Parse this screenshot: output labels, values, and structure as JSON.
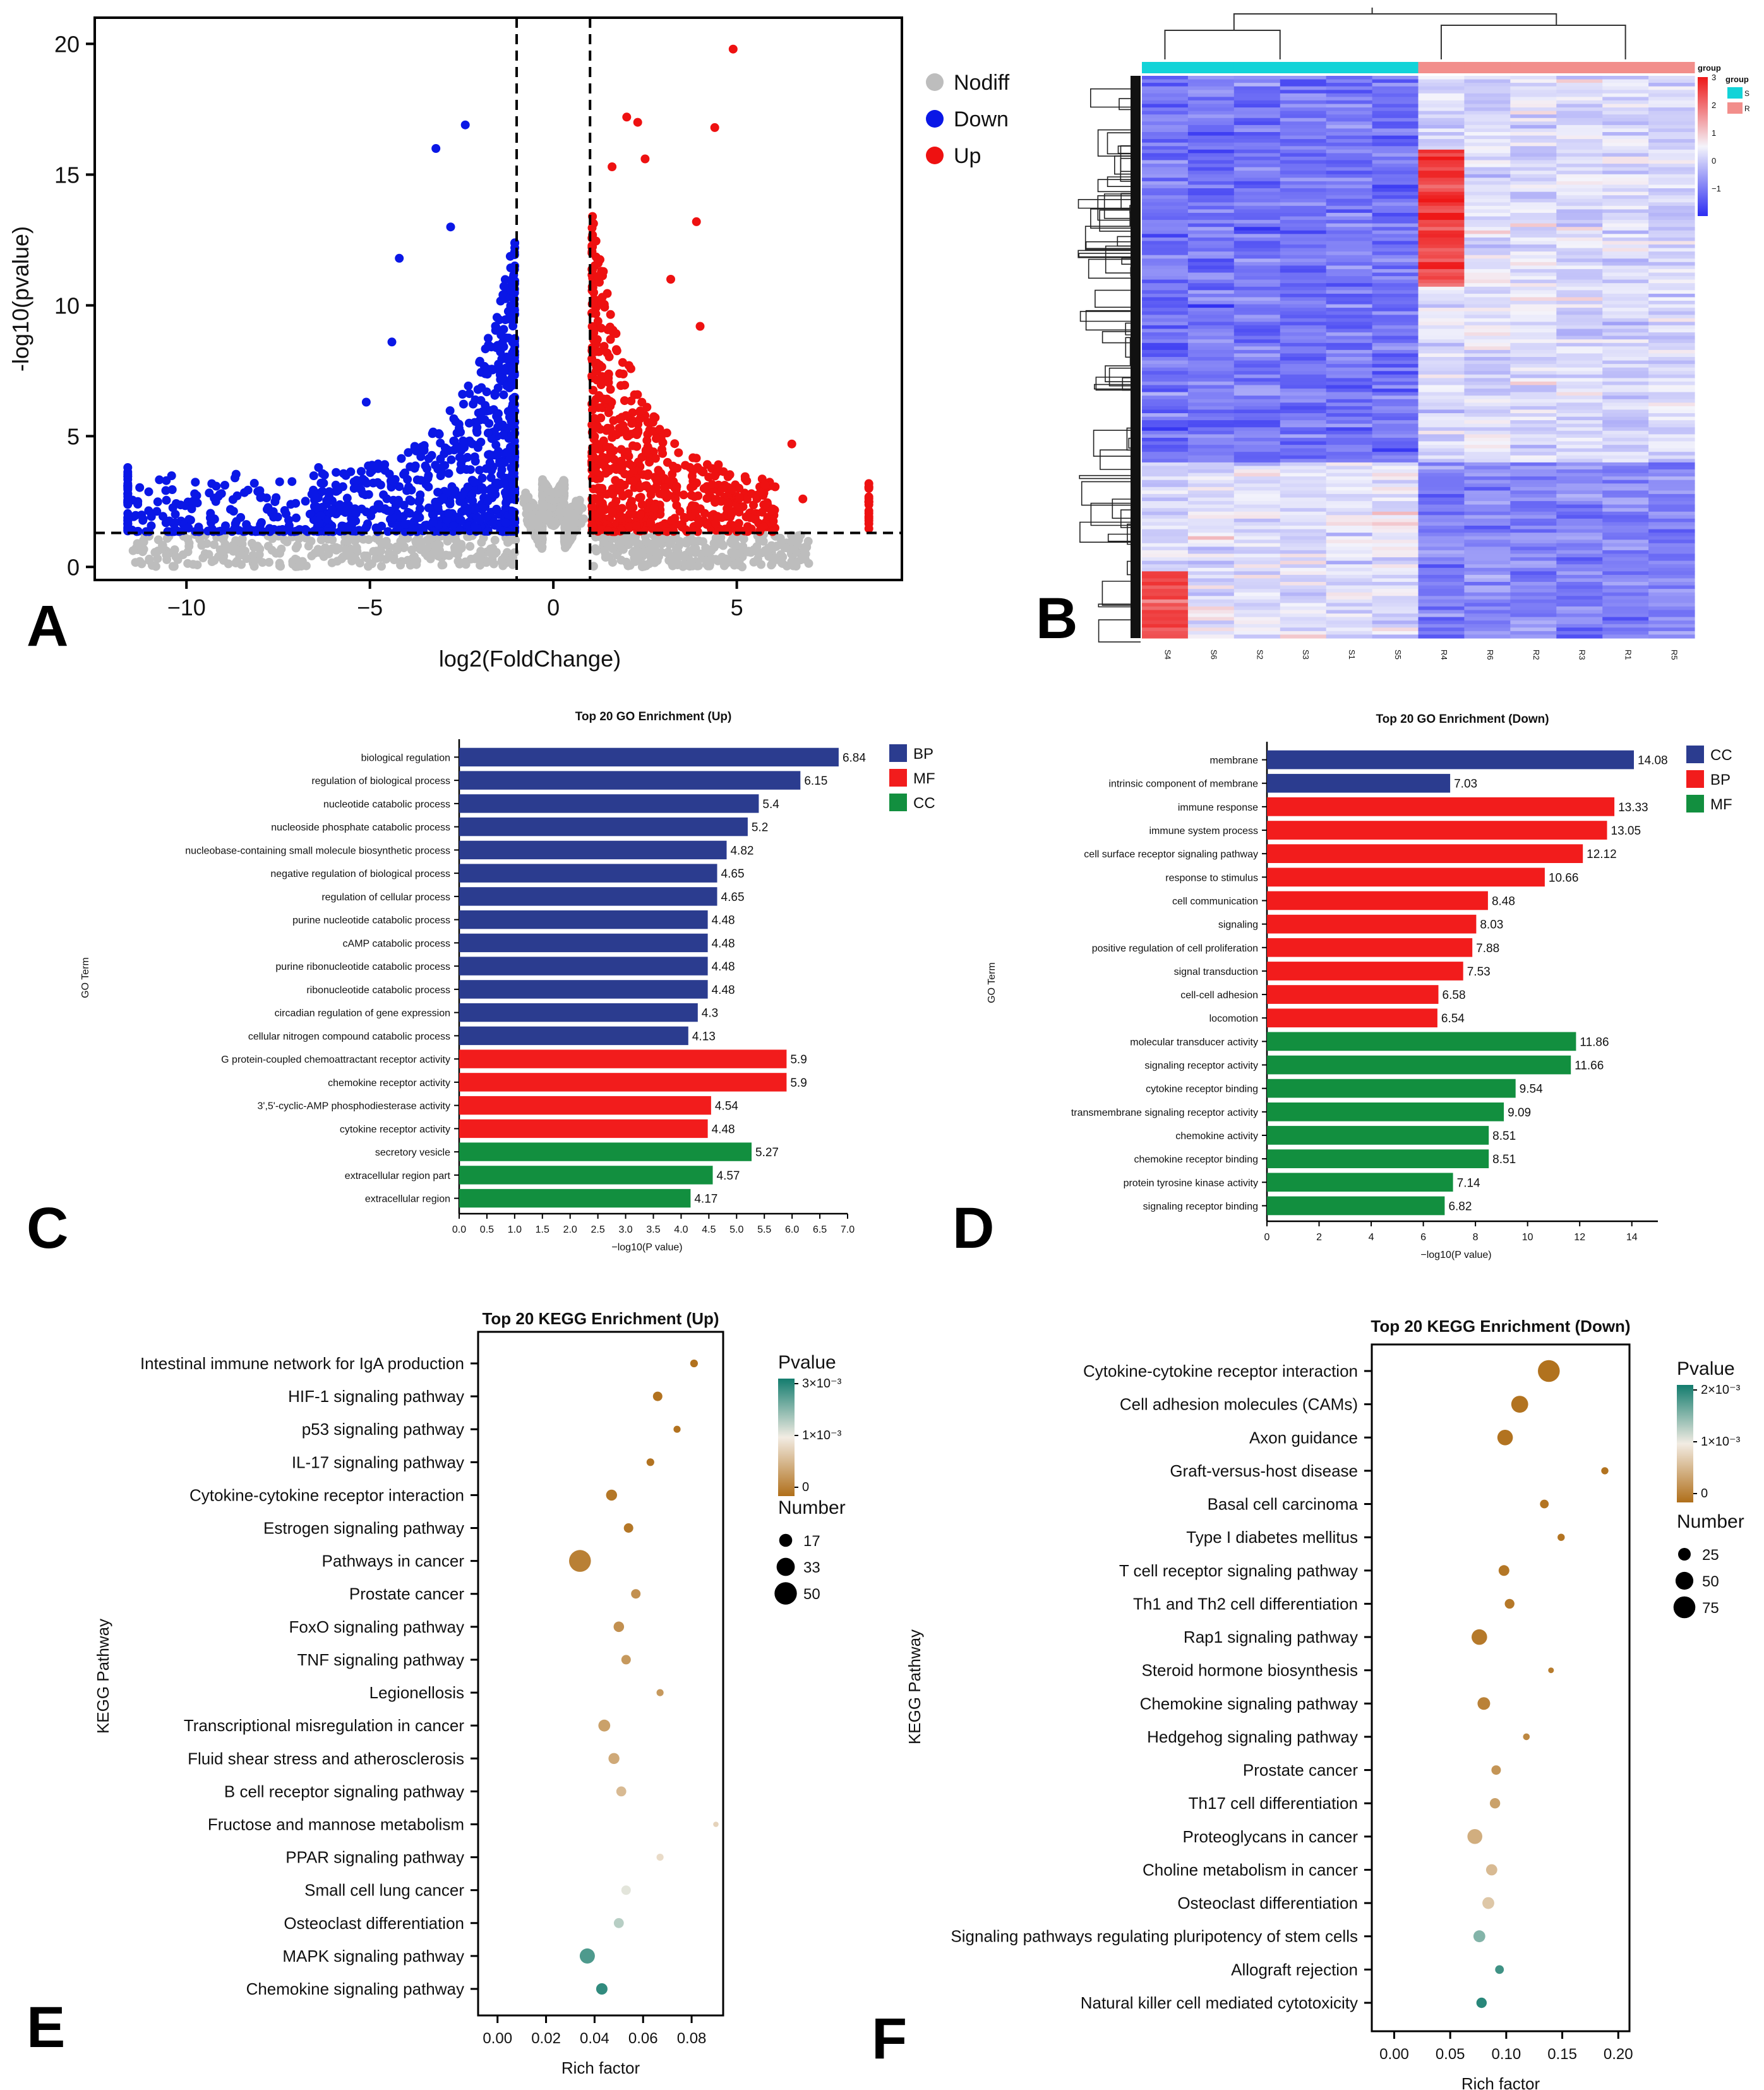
{
  "colors": {
    "nodiff": "#bdbdbd",
    "down": "#0a17e6",
    "up": "#ee1111",
    "bar_blue": "#2b3c8f",
    "bar_red": "#f21c1c",
    "bar_green": "#128f3f",
    "hm_low": "#2d2df2",
    "hm_mid": "#f4f4fb",
    "hm_high": "#ee1818",
    "group_s": "#12d3d8",
    "group_r": "#f28e8b",
    "kegg_low": "#b06f1a",
    "kegg_mid": "#f2ece3",
    "kegg_high": "#137c6e"
  },
  "panel_labels": [
    "A",
    "B",
    "C",
    "D",
    "E",
    "F"
  ],
  "chart_data": [
    {
      "panel": "A",
      "type": "scatter",
      "xlabel": "log2(FoldChange)",
      "ylabel": "-log10(pvalue)",
      "xlim": [
        -12.5,
        9.5
      ],
      "ylim": [
        -0.5,
        21
      ],
      "xticks": [
        -10,
        -5,
        0,
        5
      ],
      "yticks": [
        0,
        5,
        10,
        15,
        20
      ],
      "threshold_x": [
        -1,
        1
      ],
      "threshold_y": 1.3,
      "legend": [
        {
          "name": "Nodiff",
          "color": "#bdbdbd"
        },
        {
          "name": "Down",
          "color": "#0a17e6"
        },
        {
          "name": "Up",
          "color": "#ee1111"
        }
      ],
      "highlight_points": {
        "up": [
          [
            4.9,
            19.8
          ],
          [
            2.0,
            17.2
          ],
          [
            2.3,
            17.0
          ],
          [
            4.4,
            16.8
          ],
          [
            2.5,
            15.6
          ],
          [
            1.6,
            15.3
          ],
          [
            3.9,
            13.2
          ],
          [
            3.2,
            11.0
          ],
          [
            4.0,
            9.2
          ],
          [
            6.5,
            4.7
          ],
          [
            6.8,
            2.6
          ],
          [
            5.4,
            2.8
          ]
        ],
        "down": [
          [
            -2.4,
            16.9
          ],
          [
            -3.2,
            16.0
          ],
          [
            -2.8,
            13.0
          ],
          [
            -4.2,
            11.8
          ],
          [
            -4.4,
            8.6
          ],
          [
            -5.1,
            6.3
          ],
          [
            -6.4,
            3.8
          ],
          [
            -11.6,
            3.8
          ],
          [
            -9.2,
            2.5
          ],
          [
            -7.8,
            2.2
          ]
        ],
        "extremes_up_x": 8.6,
        "extremes_down_x": -11.6
      }
    },
    {
      "panel": "B",
      "type": "heatmap",
      "columns": [
        "S4",
        "S6",
        "S2",
        "S3",
        "S1",
        "S5",
        "R4",
        "R6",
        "R2",
        "R3",
        "R1",
        "R5"
      ],
      "column_groups": [
        "S",
        "S",
        "S",
        "S",
        "S",
        "S",
        "R",
        "R",
        "R",
        "R",
        "R",
        "R"
      ],
      "legend_title": "group",
      "legend_groups": [
        "S",
        "R"
      ],
      "scale_ticks": [
        3,
        2,
        1,
        0,
        -1
      ],
      "scale_range": [
        -2,
        3
      ]
    },
    {
      "panel": "C",
      "type": "bar",
      "orientation": "horizontal",
      "title": "Top 20 GO Enrichment (Up)",
      "xlabel": "−log10(P value)",
      "ylabel": "GO Term",
      "xlim": [
        0,
        7
      ],
      "xticks": [
        "0.0",
        "0.5",
        "1.0",
        "1.5",
        "2.0",
        "2.5",
        "3.0",
        "3.5",
        "4.0",
        "4.5",
        "5.0",
        "5.5",
        "6.0",
        "6.5",
        "7.0"
      ],
      "legend": [
        {
          "name": "BP",
          "color": "#2b3c8f"
        },
        {
          "name": "MF",
          "color": "#f21c1c"
        },
        {
          "name": "CC",
          "color": "#128f3f"
        }
      ],
      "categories": [
        "biological regulation",
        "regulation of biological process",
        "nucleotide catabolic process",
        "nucleoside phosphate catabolic process",
        "nucleobase-containing small molecule biosynthetic process",
        "negative regulation of biological process",
        "regulation of cellular process",
        "purine nucleotide catabolic process",
        "cAMP catabolic process",
        "purine ribonucleotide catabolic process",
        "ribonucleotide catabolic process",
        "circadian regulation of gene expression",
        "cellular nitrogen compound catabolic process",
        "G protein-coupled chemoattractant receptor activity",
        "chemokine receptor activity",
        "3',5'-cyclic-AMP phosphodiesterase activity",
        "cytokine receptor activity",
        "secretory vesicle",
        "extracellular region part",
        "extracellular region"
      ],
      "values": [
        6.84,
        6.15,
        5.4,
        5.2,
        4.82,
        4.65,
        4.65,
        4.48,
        4.48,
        4.48,
        4.48,
        4.3,
        4.13,
        5.9,
        5.9,
        4.54,
        4.48,
        5.27,
        4.57,
        4.17
      ],
      "value_labels": [
        "6.84",
        "6.15",
        "5.4",
        "5.2",
        "4.82",
        "4.65",
        "4.65",
        "4.48",
        "4.48",
        "4.48",
        "4.48",
        "4.3",
        "4.13",
        "5.9",
        "5.9",
        "4.54",
        "4.48",
        "5.27",
        "4.57",
        "4.17"
      ],
      "groups": [
        "BP",
        "BP",
        "BP",
        "BP",
        "BP",
        "BP",
        "BP",
        "BP",
        "BP",
        "BP",
        "BP",
        "BP",
        "BP",
        "MF",
        "MF",
        "MF",
        "MF",
        "CC",
        "CC",
        "CC"
      ]
    },
    {
      "panel": "D",
      "type": "bar",
      "orientation": "horizontal",
      "title": "Top 20 GO Enrichment (Down)",
      "xlabel": "−log10(P value)",
      "ylabel": "GO Term",
      "xlim": [
        0,
        15
      ],
      "xticks": [
        "0",
        "2",
        "4",
        "6",
        "8",
        "10",
        "12",
        "14"
      ],
      "legend": [
        {
          "name": "CC",
          "color": "#2b3c8f"
        },
        {
          "name": "BP",
          "color": "#f21c1c"
        },
        {
          "name": "MF",
          "color": "#128f3f"
        }
      ],
      "categories": [
        "membrane",
        "intrinsic component of membrane",
        "immune response",
        "immune system process",
        "cell surface receptor signaling pathway",
        "response to stimulus",
        "cell communication",
        "signaling",
        "positive regulation of cell proliferation",
        "signal transduction",
        "cell-cell adhesion",
        "locomotion",
        "molecular transducer activity",
        "signaling receptor activity",
        "cytokine receptor binding",
        "transmembrane signaling receptor activity",
        "chemokine activity",
        "chemokine receptor binding",
        "protein tyrosine kinase activity",
        "signaling receptor binding"
      ],
      "values": [
        14.08,
        7.03,
        13.33,
        13.05,
        12.12,
        10.66,
        8.48,
        8.03,
        7.88,
        7.53,
        6.58,
        6.54,
        11.86,
        11.66,
        9.54,
        9.09,
        8.51,
        8.51,
        7.14,
        6.82
      ],
      "value_labels": [
        "14.08",
        "7.03",
        "13.33",
        "13.05",
        "12.12",
        "10.66",
        "8.48",
        "8.03",
        "7.88",
        "7.53",
        "6.58",
        "6.54",
        "11.86",
        "11.66",
        "9.54",
        "9.09",
        "8.51",
        "8.51",
        "7.14",
        "6.82"
      ],
      "groups": [
        "CC",
        "CC",
        "BP",
        "BP",
        "BP",
        "BP",
        "BP",
        "BP",
        "BP",
        "BP",
        "BP",
        "BP",
        "MF",
        "MF",
        "MF",
        "MF",
        "MF",
        "MF",
        "MF",
        "MF"
      ]
    },
    {
      "panel": "E",
      "type": "scatter",
      "subtype": "bubble",
      "title": "Top 20 KEGG Enrichment (Up)",
      "xlabel": "Rich factor",
      "ylabel": "KEGG Pathway",
      "xlim": [
        -0.008,
        0.093
      ],
      "xticks": [
        "0.00",
        "0.02",
        "0.04",
        "0.06",
        "0.08"
      ],
      "pvalue_legend_title": "Pvalue",
      "pvalue_ticks": [
        "3×10⁻³",
        "1×10⁻³",
        "0"
      ],
      "pvalue_max": 0.003,
      "size_legend_title": "Number",
      "size_legend": [
        "17",
        "33",
        "50"
      ],
      "categories": [
        "Intestinal immune network for IgA production",
        "HIF-1 signaling pathway",
        "p53 signaling pathway",
        "IL-17 signaling pathway",
        "Cytokine-cytokine receptor interaction",
        "Estrogen signaling pathway",
        "Pathways in cancer",
        "Prostate cancer",
        "FoxO signaling pathway",
        "TNF signaling pathway",
        "Legionellosis",
        "Transcriptional misregulation in cancer",
        "Fluid shear stress and atherosclerosis",
        "B cell receptor signaling pathway",
        "Fructose and mannose metabolism",
        "PPAR signaling pathway",
        "Small cell lung cancer",
        "Osteoclast differentiation",
        "MAPK signaling pathway",
        "Chemokine signaling pathway"
      ],
      "rich_factor": [
        0.081,
        0.066,
        0.074,
        0.063,
        0.047,
        0.054,
        0.034,
        0.057,
        0.05,
        0.053,
        0.067,
        0.044,
        0.048,
        0.051,
        0.09,
        0.067,
        0.053,
        0.05,
        0.037,
        0.043
      ],
      "number": [
        6,
        9,
        5,
        6,
        12,
        9,
        48,
        9,
        11,
        9,
        5,
        14,
        12,
        10,
        3,
        5,
        9,
        10,
        23,
        13
      ],
      "pvalue": [
        2e-05,
        4e-05,
        4e-05,
        5e-05,
        0.0001,
        0.0001,
        0.0002,
        0.0004,
        0.0004,
        0.0005,
        0.0005,
        0.0006,
        0.0007,
        0.0009,
        0.0012,
        0.0013,
        0.0016,
        0.0019,
        0.0026,
        0.0028
      ]
    },
    {
      "panel": "F",
      "type": "scatter",
      "subtype": "bubble",
      "title": "Top 20 KEGG Enrichment (Down)",
      "xlabel": "Rich factor",
      "ylabel": "KEGG Pathway",
      "xlim": [
        -0.02,
        0.21
      ],
      "xticks": [
        "0.00",
        "0.05",
        "0.10",
        "0.15",
        "0.20"
      ],
      "pvalue_legend_title": "Pvalue",
      "pvalue_ticks": [
        "2×10⁻³",
        "1×10⁻³",
        "0"
      ],
      "pvalue_max": 0.002,
      "size_legend_title": "Number",
      "size_legend": [
        "25",
        "50",
        "75"
      ],
      "categories": [
        "Cytokine-cytokine receptor interaction",
        "Cell adhesion molecules (CAMs)",
        "Axon guidance",
        "Graft-versus-host disease",
        "Basal cell carcinoma",
        "Type I diabetes mellitus",
        "T cell receptor signaling pathway",
        "Th1 and Th2 cell differentiation",
        "Rap1 signaling pathway",
        "Steroid hormone biosynthesis",
        "Chemokine signaling pathway",
        "Hedgehog signaling pathway",
        "Prostate cancer",
        "Th17 cell differentiation",
        "Proteoglycans in cancer",
        "Choline metabolism in cancer",
        "Osteoclast differentiation",
        "Signaling pathways regulating pluripotency of stem cells",
        "Allograft rejection",
        "Natural killer cell mediated cytotoxicity"
      ],
      "rich_factor": [
        0.138,
        0.112,
        0.099,
        0.188,
        0.134,
        0.149,
        0.098,
        0.103,
        0.076,
        0.14,
        0.08,
        0.118,
        0.091,
        0.09,
        0.072,
        0.087,
        0.084,
        0.076,
        0.094,
        0.078
      ],
      "number": [
        75,
        45,
        38,
        8,
        12,
        8,
        18,
        15,
        38,
        5,
        25,
        7,
        14,
        17,
        35,
        20,
        22,
        22,
        12,
        17
      ],
      "pvalue": [
        2e-05,
        3e-05,
        3e-05,
        3e-05,
        4e-05,
        4e-05,
        6e-05,
        7e-05,
        8e-05,
        0.0001,
        0.00015,
        0.0002,
        0.0003,
        0.0004,
        0.0005,
        0.0006,
        0.0007,
        0.0015,
        0.0018,
        0.0019
      ]
    }
  ]
}
